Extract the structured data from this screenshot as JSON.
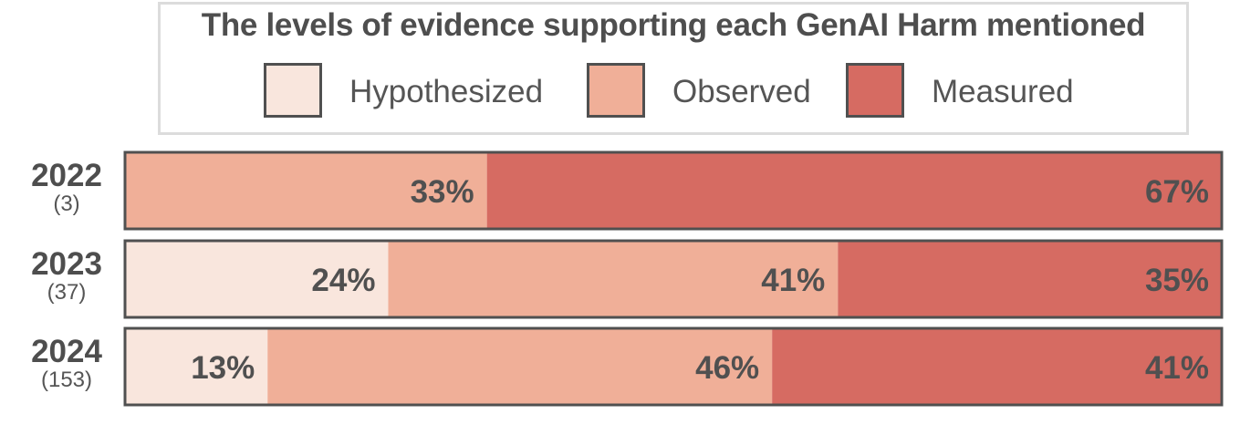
{
  "chart_data": {
    "type": "bar",
    "orientation": "horizontal-stacked-100",
    "title": "The levels of evidence supporting each GenAI Harm mentioned",
    "categories": [
      "2022",
      "2023",
      "2024"
    ],
    "category_counts": [
      "(3)",
      "(37)",
      "(153)"
    ],
    "series": [
      {
        "name": "Hypothesized",
        "color": "#f9e6dd",
        "values": [
          0,
          24,
          13
        ],
        "labels": [
          "",
          "24%",
          "13%"
        ]
      },
      {
        "name": "Observed",
        "color": "#f0af98",
        "values": [
          33,
          41,
          46
        ],
        "labels": [
          "33%",
          "41%",
          "46%"
        ]
      },
      {
        "name": "Measured",
        "color": "#d66b62",
        "values": [
          67,
          35,
          41
        ],
        "labels": [
          "67%",
          "35%",
          "41%"
        ]
      }
    ],
    "xlim": [
      0,
      100
    ],
    "legend_position": "top-center",
    "grid": false
  }
}
